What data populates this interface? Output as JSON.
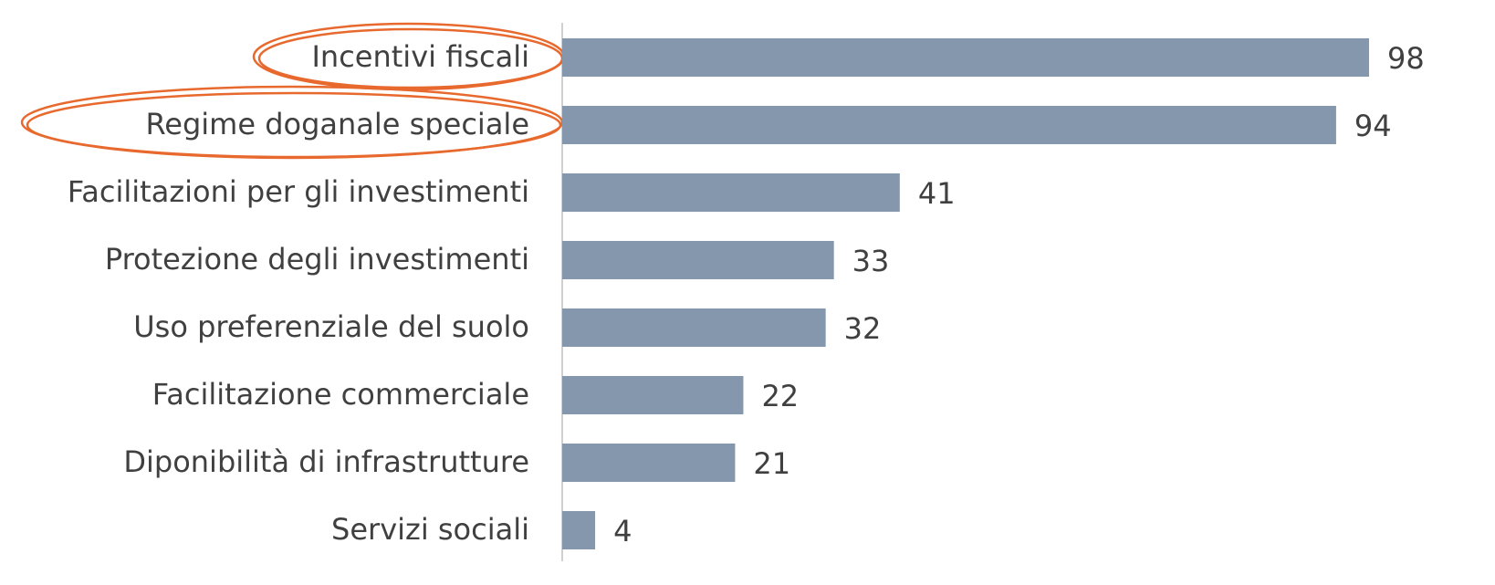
{
  "chart_data": {
    "type": "bar",
    "orientation": "horizontal",
    "categories": [
      "Incentivi fiscali",
      "Regime doganale speciale",
      "Facilitazioni per gli investimenti",
      "Protezione degli investimenti",
      "Uso preferenziale del suolo",
      "Facilitazione commerciale",
      "Diponibilità di infrastrutture",
      "Servizi sociali"
    ],
    "values": [
      98,
      94,
      41,
      33,
      32,
      22,
      21,
      4
    ],
    "color": "#8497ad"
  }
}
